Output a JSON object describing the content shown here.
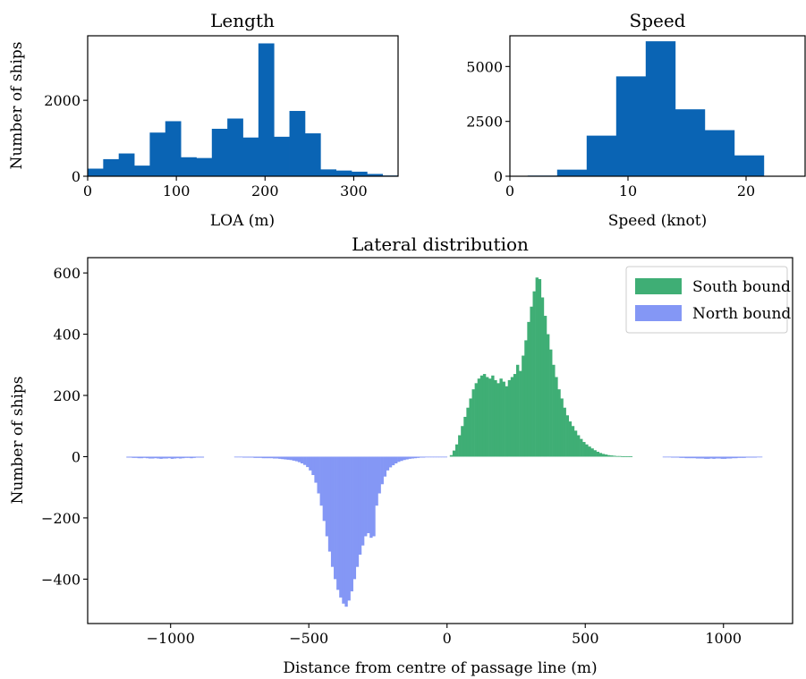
{
  "chart_data": [
    {
      "type": "bar",
      "title": "Length",
      "xlabel": "LOA (m)",
      "ylabel": "Number of ships",
      "xlim": [
        0,
        350
      ],
      "ylim": [
        0,
        3700
      ],
      "xticks": [
        0,
        100,
        200,
        300
      ],
      "yticks": [
        0,
        2000
      ],
      "xtick_labels": [
        "0",
        "100",
        "200",
        "300"
      ],
      "ytick_labels": [
        "0",
        "2000"
      ],
      "color": "#0a64b4",
      "bin_width": 17.5,
      "bin_starts": [
        0,
        17.5,
        35,
        52.5,
        70,
        87.5,
        105,
        122.5,
        140,
        157.5,
        175,
        192.5,
        210,
        227.5,
        245,
        262.5,
        280,
        297.5,
        315,
        332.5
      ],
      "values": [
        200,
        450,
        600,
        280,
        1150,
        1450,
        500,
        480,
        1250,
        1520,
        1020,
        3500,
        1040,
        1720,
        1130,
        180,
        150,
        120,
        60,
        20
      ]
    },
    {
      "type": "bar",
      "title": "Speed",
      "xlabel": "Speed (knot)",
      "ylabel": "",
      "xlim": [
        0,
        25
      ],
      "ylim": [
        0,
        6400
      ],
      "xticks": [
        0,
        10,
        20
      ],
      "yticks": [
        0,
        2500,
        5000
      ],
      "xtick_labels": [
        "0",
        "10",
        "20"
      ],
      "ytick_labels": [
        "0",
        "2500",
        "5000"
      ],
      "color": "#0a64b4",
      "bin_width": 2.5,
      "bin_starts": [
        1.5,
        4,
        6.5,
        9,
        11.5,
        14,
        16.5,
        19
      ],
      "values": [
        30,
        300,
        1850,
        4550,
        6150,
        3050,
        2100,
        950
      ]
    },
    {
      "type": "bar",
      "title": "Lateral distribution",
      "xlabel": "Distance from centre of passage line (m)",
      "ylabel": "Number of ships",
      "xlim": [
        -1300,
        1250
      ],
      "ylim": [
        -545,
        650
      ],
      "xticks": [
        -1000,
        -500,
        0,
        500,
        1000
      ],
      "yticks": [
        -400,
        -200,
        0,
        200,
        400,
        600
      ],
      "xtick_labels": [
        "−1000",
        "−500",
        "0",
        "500",
        "1000"
      ],
      "ytick_labels": [
        "−400",
        "−200",
        "0",
        "200",
        "400",
        "600"
      ],
      "bin_width": 10,
      "legend": "top-right",
      "series": [
        {
          "name": "South bound",
          "color": "#3fae75",
          "x": [
            10,
            20,
            30,
            40,
            50,
            60,
            70,
            80,
            90,
            100,
            110,
            120,
            130,
            140,
            150,
            160,
            170,
            180,
            190,
            200,
            210,
            220,
            230,
            240,
            250,
            260,
            270,
            280,
            290,
            300,
            310,
            320,
            330,
            340,
            350,
            360,
            370,
            380,
            390,
            400,
            410,
            420,
            430,
            440,
            450,
            460,
            470,
            480,
            490,
            500,
            510,
            520,
            530,
            540,
            550,
            560,
            570,
            580,
            590,
            600,
            610,
            620,
            630,
            640,
            650,
            660,
            670,
            680,
            690,
            700,
            710,
            720,
            730,
            740,
            750,
            760,
            770,
            780,
            790,
            800,
            810,
            820,
            830,
            840,
            850,
            860,
            870,
            880,
            890,
            900,
            910,
            920,
            930,
            940,
            950,
            960,
            970,
            980,
            990,
            1000,
            1010,
            1020,
            1030,
            1040,
            1050,
            1060,
            1070,
            1080,
            1090,
            1100,
            1110,
            1120,
            1130
          ],
          "values": [
            5,
            20,
            40,
            70,
            100,
            130,
            160,
            190,
            220,
            240,
            255,
            265,
            270,
            260,
            255,
            265,
            250,
            240,
            255,
            245,
            230,
            250,
            260,
            270,
            300,
            280,
            330,
            380,
            440,
            490,
            540,
            585,
            580,
            520,
            460,
            400,
            350,
            300,
            260,
            220,
            190,
            160,
            135,
            115,
            100,
            85,
            70,
            58,
            48,
            40,
            33,
            27,
            21,
            16,
            12,
            9,
            7,
            5,
            4,
            3,
            2,
            2,
            1,
            1,
            1,
            1,
            0,
            0,
            0,
            0,
            0,
            0,
            0,
            0,
            0,
            0,
            0,
            0,
            0,
            0,
            0,
            0,
            0,
            0,
            0,
            0,
            0,
            0,
            0,
            0,
            0,
            0,
            0,
            0,
            0,
            0,
            0,
            0,
            0,
            0,
            0,
            0,
            0,
            0,
            0,
            0,
            0,
            0,
            0,
            0,
            0,
            0,
            0
          ]
        },
        {
          "name": "North bound",
          "color": "#8497f5",
          "x": [
            -1160,
            -1150,
            -1140,
            -1130,
            -1120,
            -1110,
            -1100,
            -1090,
            -1080,
            -1070,
            -1060,
            -1050,
            -1040,
            -1030,
            -1020,
            -1010,
            -1000,
            -990,
            -980,
            -970,
            -960,
            -950,
            -940,
            -930,
            -920,
            -910,
            -900,
            -890,
            -770,
            -760,
            -750,
            -740,
            -730,
            -720,
            -710,
            -700,
            -690,
            -680,
            -670,
            -660,
            -650,
            -640,
            -630,
            -620,
            -610,
            -600,
            -590,
            -580,
            -570,
            -560,
            -550,
            -540,
            -530,
            -520,
            -510,
            -500,
            -490,
            -480,
            -470,
            -460,
            -450,
            -440,
            -430,
            -420,
            -410,
            -400,
            -390,
            -380,
            -370,
            -360,
            -350,
            -340,
            -330,
            -320,
            -310,
            -300,
            -290,
            -280,
            -270,
            -260,
            -250,
            -240,
            -230,
            -220,
            -210,
            -200,
            -190,
            -180,
            -170,
            -160,
            -150,
            -140,
            -130,
            -120,
            -110,
            -100,
            -90,
            -80,
            -70,
            -60,
            -50,
            -40,
            -30,
            -20,
            -10,
            780,
            790,
            800,
            810,
            820,
            830,
            840,
            850,
            860,
            870,
            880,
            890,
            900,
            910,
            920,
            930,
            940,
            950,
            960,
            970,
            980,
            990,
            1000,
            1010,
            1020,
            1030,
            1040,
            1050,
            1060,
            1070,
            1080,
            1090,
            1100,
            1110,
            1120,
            1130
          ],
          "values": [
            -3,
            -3,
            -4,
            -4,
            -5,
            -5,
            -4,
            -5,
            -6,
            -6,
            -5,
            -6,
            -7,
            -6,
            -6,
            -5,
            -7,
            -6,
            -5,
            -6,
            -5,
            -4,
            -4,
            -5,
            -4,
            -3,
            -3,
            -3,
            -2,
            -2,
            -2,
            -3,
            -3,
            -3,
            -3,
            -4,
            -4,
            -4,
            -5,
            -5,
            -5,
            -5,
            -6,
            -6,
            -7,
            -8,
            -9,
            -10,
            -11,
            -13,
            -15,
            -18,
            -22,
            -27,
            -34,
            -45,
            -60,
            -85,
            -120,
            -160,
            -210,
            -260,
            -310,
            -360,
            -400,
            -435,
            -460,
            -480,
            -490,
            -470,
            -440,
            -400,
            -360,
            -320,
            -290,
            -260,
            -250,
            -265,
            -260,
            -160,
            -120,
            -90,
            -65,
            -45,
            -35,
            -28,
            -22,
            -17,
            -14,
            -11,
            -9,
            -7,
            -6,
            -5,
            -4,
            -3,
            -3,
            -2,
            -2,
            -1,
            -1,
            -1,
            -1,
            -1,
            -1,
            -1,
            -2,
            -2,
            -3,
            -3,
            -3,
            -4,
            -4,
            -5,
            -5,
            -5,
            -5,
            -6,
            -6,
            -6,
            -7,
            -7,
            -6,
            -7,
            -6,
            -6,
            -7,
            -7,
            -6,
            -6,
            -5,
            -5,
            -4,
            -4,
            -4,
            -3,
            -3,
            -3,
            -3,
            -2,
            -2
          ]
        }
      ]
    }
  ]
}
